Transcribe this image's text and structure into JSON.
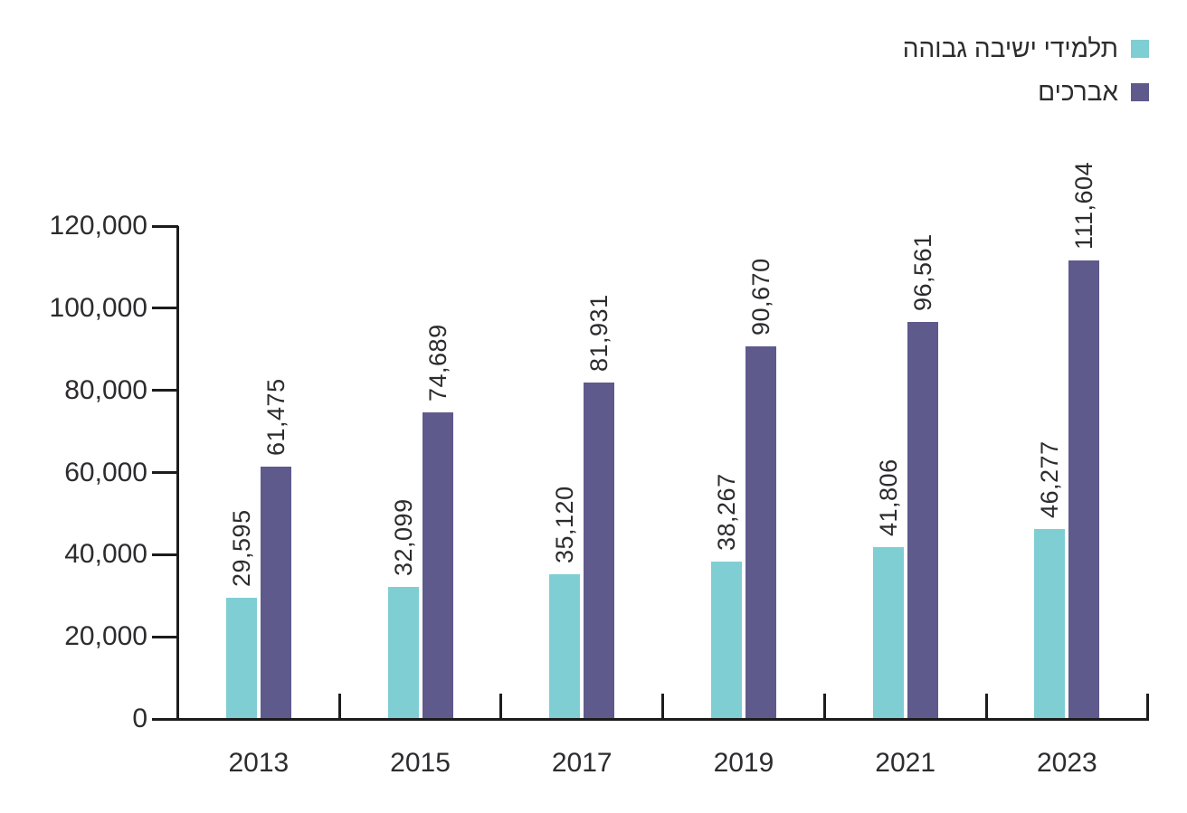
{
  "legend": {
    "items": [
      {
        "label": "תלמידי ישיבה גבוהה",
        "color": "#7FCED4"
      },
      {
        "label": "אברכים",
        "color": "#5E5A8C"
      }
    ]
  },
  "chart_data": {
    "type": "bar",
    "title": "",
    "xlabel": "",
    "ylabel": "",
    "categories": [
      "2013",
      "2015",
      "2017",
      "2019",
      "2021",
      "2023"
    ],
    "series": [
      {
        "name": "תלמידי ישיבה גבוהה",
        "color": "#7FCED4",
        "values": [
          29595,
          32099,
          35120,
          38267,
          41806,
          46277
        ],
        "value_labels": [
          "29,595",
          "32,099",
          "35,120",
          "38,267",
          "41,806",
          "46,277"
        ]
      },
      {
        "name": "אברכים",
        "color": "#5E5A8C",
        "values": [
          61475,
          74689,
          81931,
          90670,
          96561,
          111604
        ],
        "value_labels": [
          "61,475",
          "74,689",
          "81,931",
          "90,670",
          "96,561",
          "111,604"
        ]
      }
    ],
    "ylim": [
      0,
      120000
    ],
    "ytick_step": 20000,
    "ytick_labels": [
      "0",
      "20,000",
      "40,000",
      "60,000",
      "80,000",
      "100,000",
      "120,000"
    ],
    "grid": false,
    "legend_position": "top-right",
    "value_label_rotation_deg": -90,
    "text_color": "#2d2b2e",
    "axis_color": "#1c1c1c",
    "background": "#ffffff"
  }
}
